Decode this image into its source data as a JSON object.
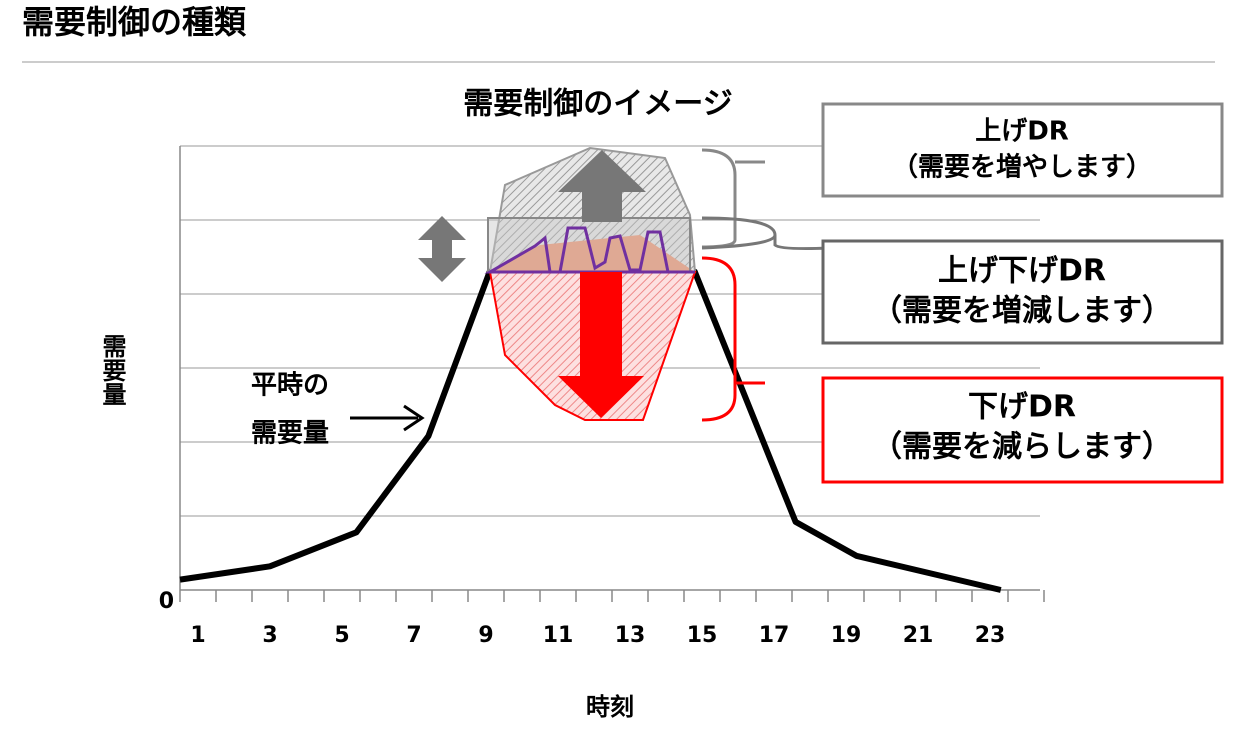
{
  "header": {
    "title": "需要制御の種類"
  },
  "chart_data": {
    "type": "line",
    "title": "需要制御のイメージ",
    "x_label": "時刻",
    "y_label": "需要量",
    "x": [
      0.5,
      3,
      5.4,
      7.4,
      9.1,
      14.8,
      17.6,
      19.3,
      23.3
    ],
    "values": [
      0.14,
      0.32,
      0.78,
      2.08,
      4.3,
      4.3,
      0.92,
      0.46,
      0
    ],
    "color": "#000000",
    "xlim": [
      0.5,
      24.5
    ],
    "xticks": [
      1,
      3,
      5,
      7,
      9,
      11,
      13,
      15,
      17,
      19,
      21,
      23
    ],
    "ylim": [
      0,
      6
    ],
    "yticks": [
      0
    ],
    "grid_lines": [
      1,
      2,
      3,
      4,
      5,
      6
    ],
    "grid": true,
    "annotation": [
      "平時の",
      "需要量"
    ],
    "boxes": [
      {
        "title": "上げDR",
        "note": "（需要を増やします）"
      },
      {
        "title": "上げ下げDR",
        "note": "（需要を増減します）"
      },
      {
        "title": "下げDR",
        "note": "（需要を減らします）"
      }
    ]
  }
}
